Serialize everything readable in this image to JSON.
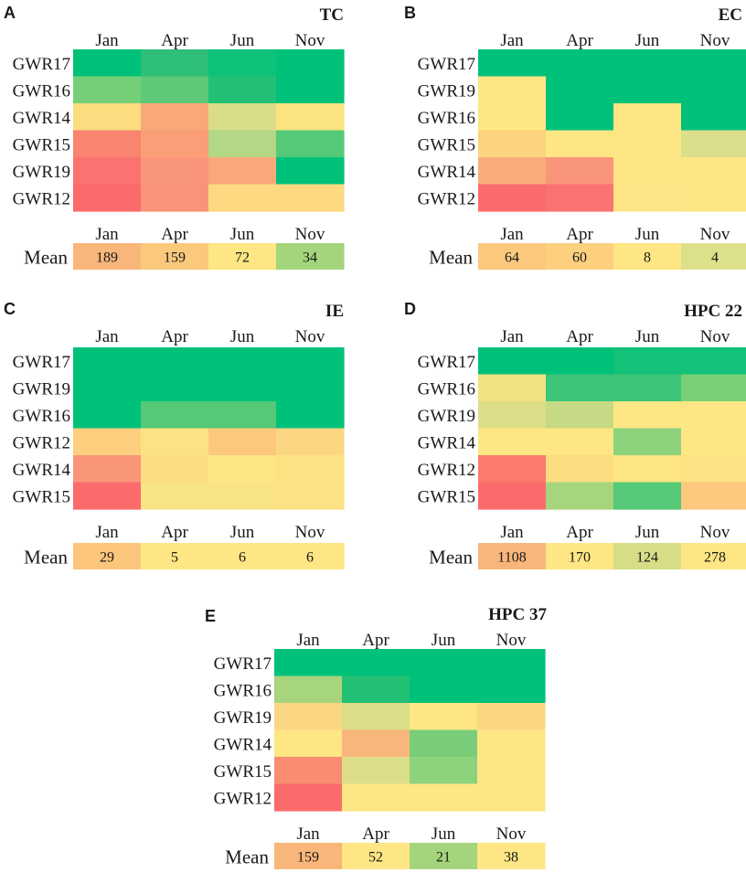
{
  "chart_data": [
    {
      "type": "heatmap",
      "panel": "A",
      "title": "TC",
      "columns": [
        "Jan",
        "Apr",
        "Jun",
        "Nov"
      ],
      "rows": [
        "GWR17",
        "GWR16",
        "GWR14",
        "GWR15",
        "GWR19",
        "GWR12"
      ],
      "cell_colors": [
        [
          "#00c17a",
          "#2dbe78",
          "#0dc279",
          "#00c17a"
        ],
        [
          "#74cf78",
          "#5fc977",
          "#22c075",
          "#00c17a"
        ],
        [
          "#fbdc7e",
          "#f9a877",
          "#d9dd87",
          "#fbe47f"
        ],
        [
          "#f98470",
          "#f99e76",
          "#b3d784",
          "#55c977"
        ],
        [
          "#fb7371",
          "#f9957a",
          "#f9a87a",
          "#00c17a"
        ],
        [
          "#fb6b6c",
          "#f9947a",
          "#fdd982",
          "#fdd982"
        ]
      ],
      "mean_label": "Mean",
      "mean_values": [
        "189",
        "159",
        "72",
        "34"
      ],
      "mean_colors": [
        "#f9b67a",
        "#fbc97c",
        "#fde683",
        "#a4d57c"
      ]
    },
    {
      "type": "heatmap",
      "panel": "B",
      "title": "EC",
      "columns": [
        "Jan",
        "Apr",
        "Jun",
        "Nov"
      ],
      "rows": [
        "GWR17",
        "GWR19",
        "GWR16",
        "GWR15",
        "GWR14",
        "GWR12"
      ],
      "cell_colors": [
        [
          "#00c17a",
          "#00c17a",
          "#00c17a",
          "#00c17a"
        ],
        [
          "#fde683",
          "#00c17a",
          "#00c17a",
          "#00c17a"
        ],
        [
          "#fde683",
          "#00c17a",
          "#fde683",
          "#00c17a"
        ],
        [
          "#fcd37f",
          "#fde683",
          "#fde683",
          "#dbde8a"
        ],
        [
          "#f9ad79",
          "#f9957a",
          "#fde683",
          "#fde683"
        ],
        [
          "#fb6b6c",
          "#fb7371",
          "#fde487",
          "#fde683"
        ]
      ],
      "mean_label": "Mean",
      "mean_values": [
        "64",
        "60",
        "8",
        "4"
      ],
      "mean_colors": [
        "#fcc87d",
        "#fcd07e",
        "#fde683",
        "#dde08a"
      ]
    },
    {
      "type": "heatmap",
      "panel": "C",
      "title": "IE",
      "columns": [
        "Jan",
        "Apr",
        "Jun",
        "Nov"
      ],
      "rows": [
        "GWR17",
        "GWR19",
        "GWR16",
        "GWR12",
        "GWR14",
        "GWR15"
      ],
      "cell_colors": [
        [
          "#00c17a",
          "#00c17a",
          "#00c17a",
          "#00c17a"
        ],
        [
          "#00c17a",
          "#00c17a",
          "#00c17a",
          "#00c17a"
        ],
        [
          "#00c17a",
          "#55c977",
          "#55c977",
          "#00c17a"
        ],
        [
          "#fcd07e",
          "#fde284",
          "#fcc87d",
          "#fcd783"
        ],
        [
          "#f99578",
          "#fddd82",
          "#fde683",
          "#fde283"
        ],
        [
          "#fb6b6c",
          "#f8e487",
          "#f8e487",
          "#fde283"
        ]
      ],
      "mean_label": "Mean",
      "mean_values": [
        "29",
        "5",
        "6",
        "6"
      ],
      "mean_colors": [
        "#fbc57c",
        "#fde683",
        "#fde683",
        "#fde683"
      ]
    },
    {
      "type": "heatmap",
      "panel": "D",
      "title": "HPC 22",
      "columns": [
        "Jan",
        "Apr",
        "Jun",
        "Nov"
      ],
      "rows": [
        "GWR17",
        "GWR16",
        "GWR19",
        "GWR14",
        "GWR12",
        "GWR15"
      ],
      "cell_colors": [
        [
          "#00c17a",
          "#00c17a",
          "#13c179",
          "#13c179"
        ],
        [
          "#f1e282",
          "#3cc479",
          "#3cc479",
          "#78cf78"
        ],
        [
          "#dcdd87",
          "#c6d984",
          "#fde683",
          "#fde683"
        ],
        [
          "#fde683",
          "#fde683",
          "#8dd37e",
          "#fde683"
        ],
        [
          "#fb7c6e",
          "#fcdd80",
          "#fde683",
          "#fde283"
        ],
        [
          "#fb6b6c",
          "#a6d57d",
          "#55c977",
          "#fcc87d"
        ]
      ],
      "mean_label": "Mean",
      "mean_values": [
        "1108",
        "170",
        "124",
        "278"
      ],
      "mean_colors": [
        "#f9b67a",
        "#fde683",
        "#d7dd86",
        "#fde683"
      ]
    },
    {
      "type": "heatmap",
      "panel": "E",
      "title": "HPC 37",
      "columns": [
        "Jan",
        "Apr",
        "Jun",
        "Nov"
      ],
      "rows": [
        "GWR17",
        "GWR16",
        "GWR19",
        "GWR14",
        "GWR15",
        "GWR12"
      ],
      "cell_colors": [
        [
          "#00c17a",
          "#00c17a",
          "#00c17a",
          "#00c17a"
        ],
        [
          "#a6d57d",
          "#22c075",
          "#00c17a",
          "#00c17a"
        ],
        [
          "#fcd783",
          "#dcdd87",
          "#fde683",
          "#fcd783"
        ],
        [
          "#fde683",
          "#f9b67a",
          "#7acd78",
          "#fde683"
        ],
        [
          "#f98c72",
          "#dcdd87",
          "#8dd37e",
          "#fde683"
        ],
        [
          "#fb6b6c",
          "#fde683",
          "#fde683",
          "#fde683"
        ]
      ],
      "mean_label": "Mean",
      "mean_values": [
        "159",
        "52",
        "21",
        "38"
      ],
      "mean_colors": [
        "#f9b67a",
        "#fde683",
        "#a4d57c",
        "#fde683"
      ]
    }
  ]
}
